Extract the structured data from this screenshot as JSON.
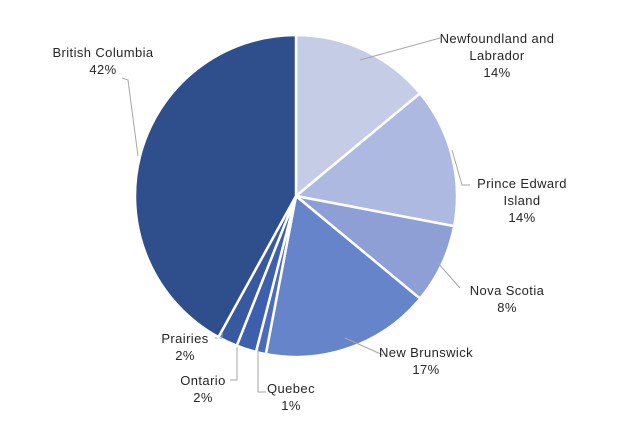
{
  "chart_data": {
    "type": "pie",
    "categories": [
      "Newfoundland and Labrador",
      "Prince Edward Island",
      "Nova Scotia",
      "New Brunswick",
      "Quebec",
      "Ontario",
      "Prairies",
      "British Columbia"
    ],
    "values": [
      14,
      14,
      8,
      17,
      1,
      2,
      2,
      42
    ],
    "value_labels": [
      "14%",
      "14%",
      "8%",
      "17%",
      "1%",
      "2%",
      "2%",
      "42%"
    ],
    "colors": [
      "#c5cce6",
      "#adb9e0",
      "#8e9fd5",
      "#6584ca",
      "#4a6bbf",
      "#3d5fae",
      "#38589f",
      "#2f4e8c"
    ]
  }
}
